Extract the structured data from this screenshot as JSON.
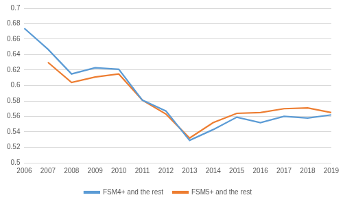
{
  "chart_data": {
    "type": "line",
    "categories": [
      "2006",
      "2007",
      "2008",
      "2009",
      "2010",
      "2011",
      "2012",
      "2013",
      "2014",
      "2015",
      "2016",
      "2017",
      "2018",
      "2019"
    ],
    "series": [
      {
        "name": "FSM4+ and the rest",
        "color": "#5b9bd5",
        "values": [
          0.674,
          0.647,
          0.615,
          0.623,
          0.621,
          0.581,
          0.567,
          0.529,
          0.543,
          0.559,
          0.552,
          0.56,
          0.558,
          0.562
        ]
      },
      {
        "name": "FSM5+ and the rest",
        "color": "#ed7d31",
        "values": [
          null,
          0.63,
          0.604,
          0.611,
          0.615,
          0.581,
          0.563,
          0.532,
          0.552,
          0.564,
          0.565,
          0.57,
          0.571,
          0.565
        ]
      }
    ],
    "ylim": [
      0.5,
      0.7
    ],
    "yticks": [
      0.5,
      0.52,
      0.54,
      0.56,
      0.58,
      0.6,
      0.62,
      0.64,
      0.66,
      0.68,
      0.7
    ],
    "grid": true,
    "legend": "bottom"
  }
}
